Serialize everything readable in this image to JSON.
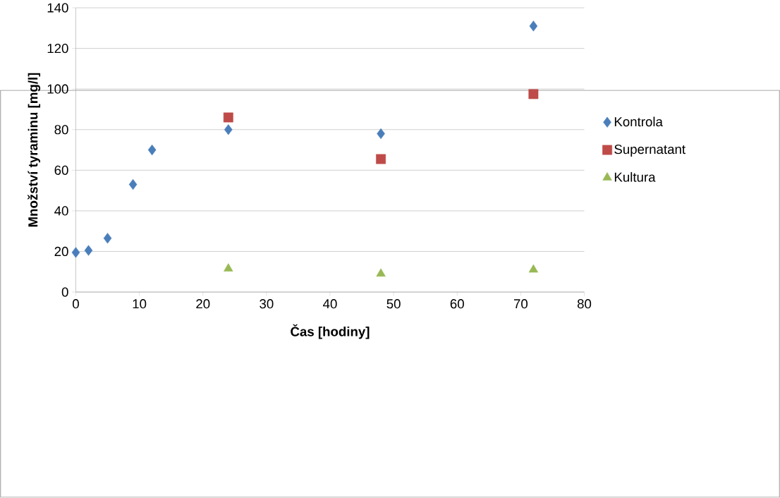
{
  "chart_data": {
    "type": "scatter",
    "xlabel": "Čas  [hodiny]",
    "ylabel": "Množství tyraminu [mg/l]",
    "xlim": [
      0,
      80
    ],
    "xticks": [
      0,
      10,
      20,
      30,
      40,
      50,
      60,
      70,
      80
    ],
    "ylim": [
      0,
      140
    ],
    "yticks": [
      0,
      20,
      40,
      60,
      80,
      100,
      120,
      140
    ],
    "grid": "y",
    "legend": "right",
    "series": [
      {
        "name": "Kontrola",
        "color": "#4a7ebb",
        "marker": "diamond",
        "x": [
          0,
          2,
          5,
          9,
          12,
          24,
          48,
          72
        ],
        "values": [
          19.5,
          20.5,
          26.5,
          53,
          70,
          80,
          78,
          131
        ]
      },
      {
        "name": "Supernatant",
        "color": "#be4b48",
        "marker": "square",
        "x": [
          24,
          48,
          72
        ],
        "values": [
          86,
          65.5,
          97.5
        ]
      },
      {
        "name": "Kultura",
        "color": "#98b954",
        "marker": "triangle",
        "x": [
          24,
          48,
          72
        ],
        "values": [
          11.5,
          9,
          11
        ]
      }
    ]
  }
}
